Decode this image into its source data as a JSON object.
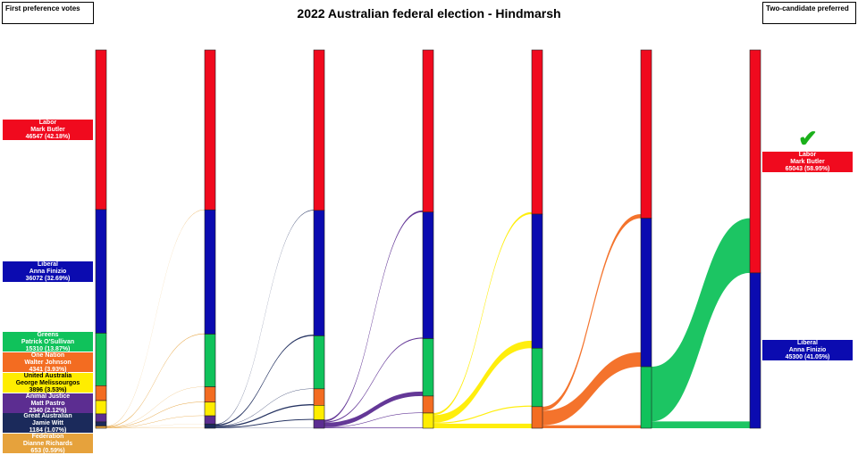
{
  "title": "2022 Australian federal election - Hindmarsh",
  "left_header": "First preference votes",
  "right_header": "Two-candidate preferred",
  "winner_icon": "checkmark-icon",
  "parties": [
    {
      "party": "Labor",
      "candidate": "Mark Butler",
      "votes_text": "46547 (42.18%)",
      "color": "#f00a1e",
      "text_color": "#ffffff"
    },
    {
      "party": "Liberal",
      "candidate": "Anna Finizio",
      "votes_text": "36072 (32.69%)",
      "color": "#0b0bb0",
      "text_color": "#ffffff"
    },
    {
      "party": "Greens",
      "candidate": "Patrick O'Sullivan",
      "votes_text": "15310 (13.87%)",
      "color": "#10c25b",
      "text_color": "#ffffff"
    },
    {
      "party": "One Nation",
      "candidate": "Walter Johnson",
      "votes_text": "4341 (3.93%)",
      "color": "#f36c21",
      "text_color": "#ffffff"
    },
    {
      "party": "United Australia",
      "candidate": "George Melissourgos",
      "votes_text": "3896 (3.53%)",
      "color": "#ffed00",
      "text_color": "#000000"
    },
    {
      "party": "Animal Justice",
      "candidate": "Matt Pastro",
      "votes_text": "2340 (2.12%)",
      "color": "#5c2d91",
      "text_color": "#ffffff"
    },
    {
      "party": "Great Australian",
      "candidate": "Jamie Witt",
      "votes_text": "1184 (1.07%)",
      "color": "#1b2a5b",
      "text_color": "#ffffff"
    },
    {
      "party": "Federation",
      "candidate": "Dianne Richards",
      "votes_text": "653 (0.59%)",
      "color": "#e6a23c",
      "text_color": "#ffffff"
    }
  ],
  "final": [
    {
      "party": "Labor",
      "candidate": "Mark Butler",
      "votes_text": "65043 (58.95%)",
      "color": "#f00a1e"
    },
    {
      "party": "Liberal",
      "candidate": "Anna Finizio",
      "votes_text": "45300 (41.05%)",
      "color": "#0b0bb0"
    }
  ],
  "rounds": [
    [
      46547,
      36072,
      15310,
      4341,
      3896,
      2340,
      1184,
      653
    ],
    [
      46647,
      36252,
      15370,
      4461,
      3996,
      2380,
      1237,
      0
    ],
    [
      46797,
      36602,
      15450,
      4811,
      4246,
      2437,
      0,
      0
    ],
    [
      47297,
      36902,
      16750,
      4961,
      4433,
      0,
      0,
      0
    ],
    [
      47897,
      39102,
      17050,
      6294,
      0,
      0,
      0,
      0
    ],
    [
      49097,
      43302,
      17944,
      0,
      0,
      0,
      0,
      0
    ],
    [
      65043,
      45300,
      0,
      0,
      0,
      0,
      0,
      0
    ]
  ]
}
